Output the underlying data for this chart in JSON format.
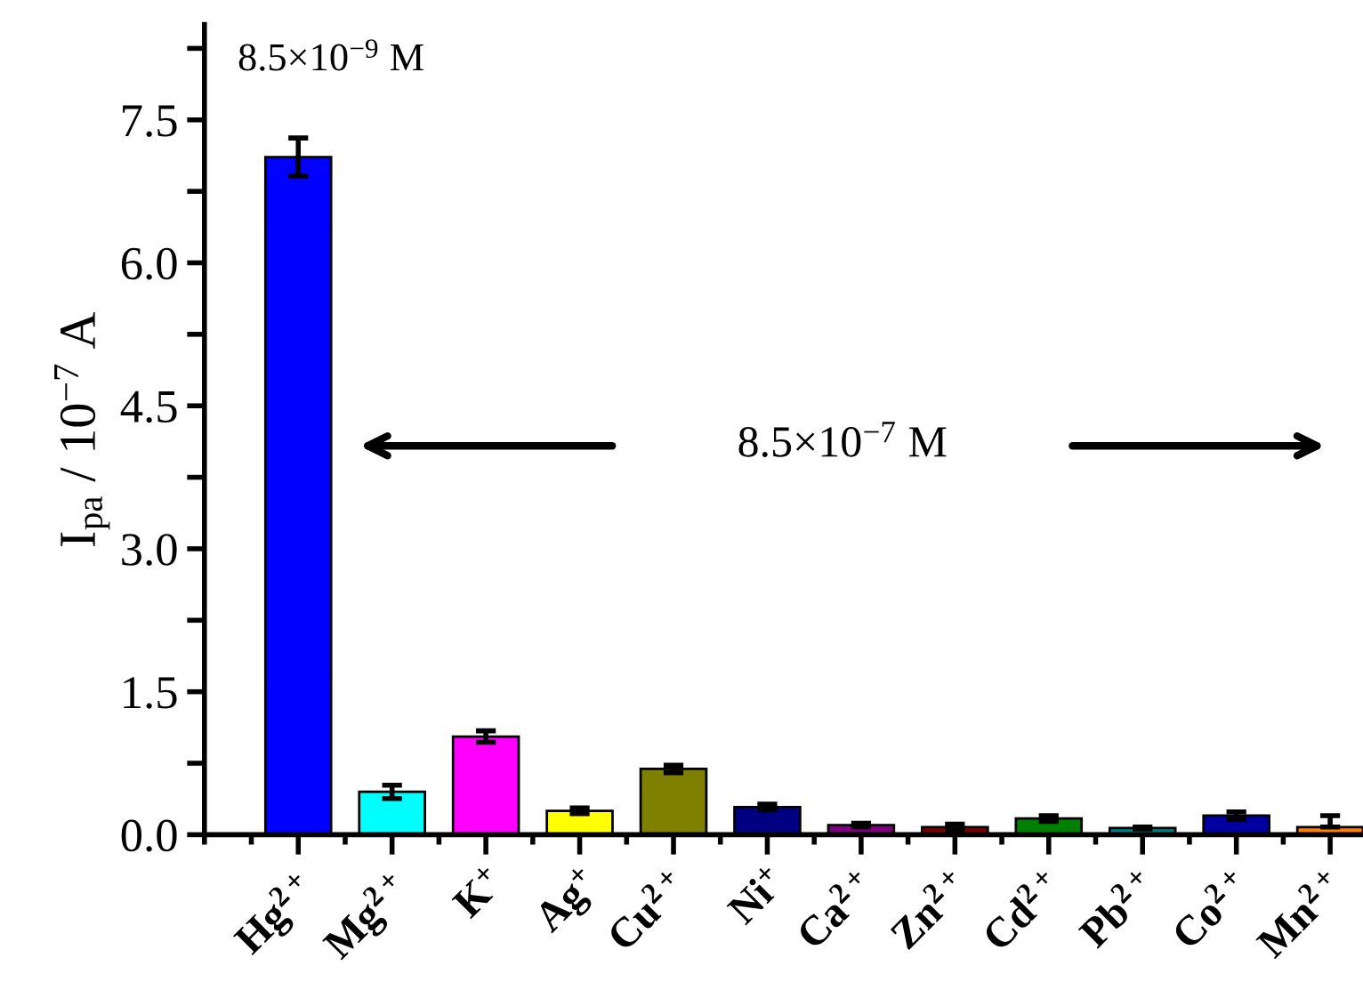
{
  "chart_data": {
    "type": "bar",
    "ylabel": "I$_{pa}$ / 10$^{−7}$ A",
    "categories": [
      "Hg$^{2+}$",
      "Mg$^{2+}$",
      "K$^{+}$",
      "Ag$^{+}$",
      "Cu$^{2+}$",
      "Ni$^{+}$",
      "Ca$^{2+}$",
      "Zn$^{2+}$",
      "Cd$^{2+}$",
      "Pb$^{2+}$",
      "Co$^{2+}$",
      "Mn$^{2+}$"
    ],
    "values": [
      7.11,
      0.45,
      1.03,
      0.25,
      0.69,
      0.29,
      0.1,
      0.08,
      0.17,
      0.07,
      0.2,
      0.08
    ],
    "errors": [
      0.2,
      0.07,
      0.06,
      0.03,
      0.04,
      0.03,
      0.02,
      0.03,
      0.03,
      0.01,
      0.04,
      [
        0.08,
        0.2
      ]
    ],
    "colors": [
      "#0000ff",
      "#00ffff",
      "#ff00ff",
      "#ffff00",
      "#808000",
      "#000080",
      "#800080",
      "#800000",
      "#008000",
      "#008080",
      "#0000a0",
      "#ff8000"
    ],
    "ylim": [
      0,
      8.5
    ],
    "yticks": [
      {
        "value": 0,
        "label": "0.0"
      },
      {
        "value": 0.75,
        "label": null
      },
      1.5,
      {
        "value": 2.25,
        "label": null
      },
      {
        "value": 3,
        "label": "3.0"
      },
      {
        "value": 3.75,
        "label": null
      },
      4.5,
      {
        "value": 5.25,
        "label": null
      },
      {
        "value": 6,
        "label": "6.0"
      },
      {
        "value": 6.75,
        "label": null
      },
      7.5,
      {
        "value": 8.25,
        "label": null
      }
    ],
    "annotations": [
      "8.5×10$^{−9}$ M",
      "8.5×10$^{−7}$ M"
    ],
    "grid": false,
    "legend": false
  }
}
